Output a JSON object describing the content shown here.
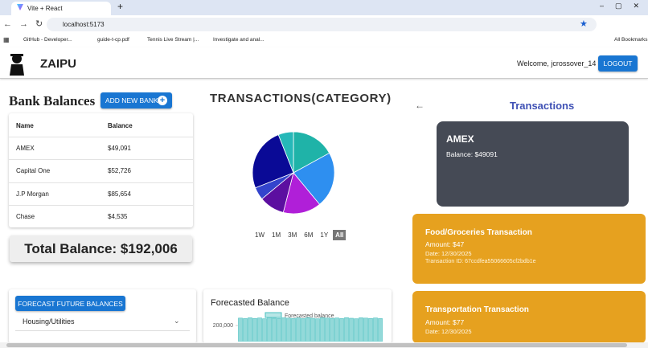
{
  "browser": {
    "tab_title": "Vite + React",
    "url": "localhost:5173",
    "bookmarks": [
      "GitHub - Developer...",
      "guide-t-cp.pdf",
      "Tennis Live Stream |...",
      "Investigate and anal..."
    ],
    "all_bookmarks": "All Bookmarks"
  },
  "header": {
    "brand": "ZAIPU",
    "welcome": "Welcome, jcrossover_14",
    "logout": "LOGOUT"
  },
  "bank": {
    "title": "Bank Balances",
    "add_button": "ADD NEW BANK",
    "columns": [
      "Name",
      "Balance"
    ],
    "rows": [
      [
        "AMEX",
        "$49,091"
      ],
      [
        "Capital One",
        "$52,726"
      ],
      [
        "J.P Morgan",
        "$85,654"
      ],
      [
        "Chase",
        "$4,535"
      ]
    ],
    "total": "Total Balance: $192,006"
  },
  "chart_data": [
    {
      "type": "pie",
      "title": "TRANSACTIONS(CATEGORY)",
      "values": [
        17,
        22,
        15,
        10,
        5,
        25,
        6
      ],
      "colors": [
        "#1fb3a8",
        "#2e8ff0",
        "#b01fd8",
        "#5c0fa0",
        "#3344cc",
        "#0a0a96",
        "#26b8b8"
      ]
    },
    {
      "type": "bar",
      "title": "Forecasted Balance",
      "series": [
        {
          "name": "Forecasted balance",
          "color": "#4bc0c0",
          "values": [
            246000,
            243000,
            248000,
            244000,
            247000,
            242000,
            249000,
            245000,
            243000,
            248000,
            246000,
            244000,
            247000,
            243000,
            249000,
            245000,
            242000,
            248000,
            246000,
            244000,
            247000,
            243000,
            249000,
            245000,
            242000,
            248000,
            246000,
            244000,
            247000,
            243000
          ]
        }
      ],
      "ylim": [
        100000,
        260000
      ],
      "yticks": [
        {
          "value": 200000,
          "label": "200,000"
        }
      ]
    }
  ],
  "filters": {
    "options": [
      "1W",
      "1M",
      "3M",
      "6M",
      "1Y",
      "All"
    ],
    "selected": "All"
  },
  "transactions": {
    "title": "Transactions",
    "account": {
      "name": "AMEX",
      "balance": "Balance: $49091"
    },
    "items": [
      {
        "title": "Food/Groceries Transaction",
        "amount": "Amount: $47",
        "date": "Date: 12/30/2025",
        "id": "Transaction ID: 67ccdfea55066605cf2bdb1e"
      },
      {
        "title": "Transportation Transaction",
        "amount": "Amount: $77",
        "date": "Date: 12/30/2025"
      }
    ]
  },
  "forecast": {
    "button": "FORECAST FUTURE BALANCES",
    "category": "Housing/Utilities"
  }
}
